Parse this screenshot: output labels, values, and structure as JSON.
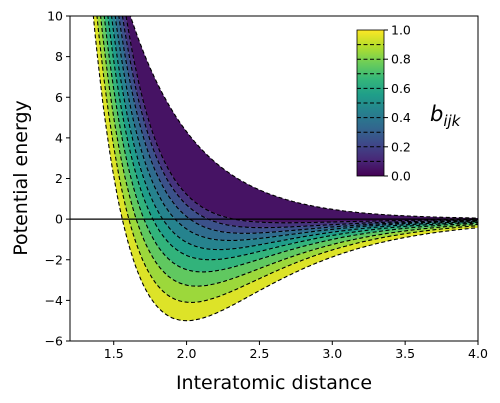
{
  "chart_data": {
    "type": "line",
    "xlabel": "Interatomic distance",
    "ylabel": "Potential energy",
    "xlim": [
      1.2,
      4.0
    ],
    "ylim": [
      -6,
      10
    ],
    "xticks": [
      "1.5",
      "2.0",
      "2.5",
      "3.0",
      "3.5",
      "4.0"
    ],
    "yticks": [
      "−6",
      "−4",
      "−2",
      "0",
      "2",
      "4",
      "6",
      "8",
      "10"
    ],
    "reference_line_y": 0,
    "grid": false,
    "contour": {
      "levels": [
        1.0,
        0.9,
        0.8,
        0.7,
        0.6,
        0.5,
        0.4,
        0.3,
        0.2,
        0.1,
        0.0
      ],
      "well_depth": [
        -5.0,
        -4.1,
        -3.3,
        -2.6,
        -2.0,
        -1.5,
        -1.05,
        -0.7,
        -0.42,
        -0.18,
        0.0
      ],
      "well_position": [
        2.0,
        2.03,
        2.07,
        2.11,
        2.16,
        2.22,
        2.3,
        2.4,
        2.52,
        2.68,
        2.9
      ],
      "crossing_at_y10": [
        1.36,
        1.385,
        1.41,
        1.435,
        1.46,
        1.485,
        1.51,
        1.535,
        1.56,
        1.585,
        1.615
      ],
      "line_style": "dashed"
    },
    "colorbar": {
      "label_base": "b",
      "label_sub": "ijk",
      "range": [
        0.0,
        1.0
      ],
      "ticks": [
        "0.0",
        "0.2",
        "0.4",
        "0.6",
        "0.8",
        "1.0"
      ],
      "colormap": "viridis",
      "placement": "top-right"
    }
  },
  "colors": {
    "viridis_stops": [
      "#440154",
      "#482878",
      "#3e4989",
      "#31688e",
      "#26828e",
      "#1f9e89",
      "#35b779",
      "#6ece58",
      "#b5de2b",
      "#fde725"
    ],
    "contour_line": "#000000",
    "axis": "#000000"
  }
}
